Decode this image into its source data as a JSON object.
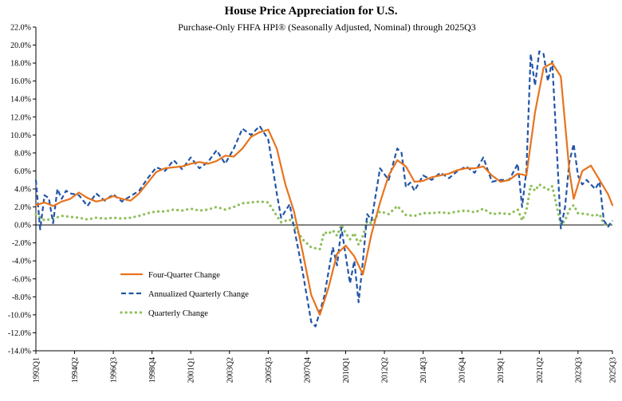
{
  "chart_data": {
    "type": "line",
    "title": "House Price Appreciation for U.S.",
    "subtitle": "Purchase-Only FHFA HPI® (Seasonally Adjusted, Nominal) through 2025Q3",
    "xlabel": "",
    "ylabel": "",
    "ylim": [
      -14,
      22
    ],
    "y_ticks": [
      22,
      20,
      18,
      16,
      14,
      12,
      10,
      8,
      6,
      4,
      2,
      0,
      -2,
      -4,
      -6,
      -8,
      -10,
      -12,
      -14
    ],
    "y_tick_labels": [
      "22.0%",
      "20.0%",
      "18.0%",
      "16.0%",
      "14.0%",
      "12.0%",
      "10.0%",
      "8.0%",
      "6.0%",
      "4.0%",
      "2.0%",
      "0.0%",
      "-2.0%",
      "-4.0%",
      "-6.0%",
      "-8.0%",
      "-10.0%",
      "-12.0%",
      "-14.0%"
    ],
    "x_start_year": 1992,
    "x_end_year": 2025.5,
    "x_tick_labels": [
      "1992Q1",
      "1994Q2",
      "1996Q3",
      "1998Q4",
      "2001Q1",
      "2003Q2",
      "2005Q3",
      "2007Q4",
      "2010Q1",
      "2012Q2",
      "2014Q3",
      "2016Q4",
      "2019Q1",
      "2021Q2",
      "2023Q3",
      "2025Q3"
    ],
    "x_tick_years": [
      1992.0,
      1994.25,
      1996.5,
      1998.75,
      2001.0,
      2003.25,
      2005.5,
      2007.75,
      2010.0,
      2012.25,
      2014.5,
      2016.75,
      2019.0,
      2021.25,
      2023.5,
      2025.5
    ],
    "legend": {
      "placement": "lower-left"
    },
    "series": [
      {
        "name": "Four-Quarter Change",
        "color": "#e8731c",
        "style": "solid",
        "points": [
          [
            1992.0,
            2.2
          ],
          [
            1992.5,
            2.5
          ],
          [
            1993.0,
            2.1
          ],
          [
            1993.5,
            2.6
          ],
          [
            1994.0,
            2.9
          ],
          [
            1994.5,
            3.6
          ],
          [
            1995.0,
            3.0
          ],
          [
            1995.5,
            2.6
          ],
          [
            1996.0,
            2.8
          ],
          [
            1996.5,
            3.2
          ],
          [
            1997.0,
            2.9
          ],
          [
            1997.5,
            2.7
          ],
          [
            1998.0,
            3.5
          ],
          [
            1998.5,
            4.7
          ],
          [
            1999.0,
            5.9
          ],
          [
            1999.5,
            6.3
          ],
          [
            2000.0,
            6.4
          ],
          [
            2000.5,
            6.5
          ],
          [
            2001.0,
            6.8
          ],
          [
            2001.5,
            7.0
          ],
          [
            2002.0,
            6.8
          ],
          [
            2002.5,
            7.1
          ],
          [
            2003.0,
            7.7
          ],
          [
            2003.5,
            7.6
          ],
          [
            2004.0,
            8.5
          ],
          [
            2004.5,
            9.8
          ],
          [
            2005.0,
            10.3
          ],
          [
            2005.5,
            10.6
          ],
          [
            2006.0,
            8.5
          ],
          [
            2006.5,
            4.5
          ],
          [
            2007.0,
            1.5
          ],
          [
            2007.5,
            -3.0
          ],
          [
            2008.0,
            -7.8
          ],
          [
            2008.5,
            -10.0
          ],
          [
            2009.0,
            -7.0
          ],
          [
            2009.5,
            -3.2
          ],
          [
            2010.0,
            -2.3
          ],
          [
            2010.5,
            -3.5
          ],
          [
            2011.0,
            -5.5
          ],
          [
            2011.5,
            -1.0
          ],
          [
            2012.0,
            2.5
          ],
          [
            2012.5,
            5.5
          ],
          [
            2013.0,
            7.2
          ],
          [
            2013.5,
            6.5
          ],
          [
            2014.0,
            4.8
          ],
          [
            2014.5,
            4.9
          ],
          [
            2015.0,
            5.3
          ],
          [
            2015.5,
            5.5
          ],
          [
            2016.0,
            5.7
          ],
          [
            2016.5,
            6.1
          ],
          [
            2017.0,
            6.3
          ],
          [
            2017.5,
            6.3
          ],
          [
            2018.0,
            6.5
          ],
          [
            2018.5,
            5.5
          ],
          [
            2019.0,
            4.8
          ],
          [
            2019.5,
            5.0
          ],
          [
            2020.0,
            5.7
          ],
          [
            2020.5,
            5.5
          ],
          [
            2021.0,
            12.5
          ],
          [
            2021.5,
            17.5
          ],
          [
            2022.0,
            18.0
          ],
          [
            2022.5,
            16.5
          ],
          [
            2023.0,
            6.0
          ],
          [
            2023.25,
            2.9
          ],
          [
            2023.75,
            6.0
          ],
          [
            2024.25,
            6.6
          ],
          [
            2024.75,
            5.0
          ],
          [
            2025.25,
            3.4
          ],
          [
            2025.5,
            2.2
          ]
        ]
      },
      {
        "name": "Annualized Quarterly Change",
        "color": "#2255a8",
        "style": "dashed",
        "points": [
          [
            1992.0,
            5.0
          ],
          [
            1992.25,
            -0.5
          ],
          [
            1992.5,
            3.3
          ],
          [
            1992.75,
            3.0
          ],
          [
            1993.0,
            0.2
          ],
          [
            1993.25,
            4.0
          ],
          [
            1993.5,
            2.9
          ],
          [
            1993.75,
            3.8
          ],
          [
            1994.0,
            3.5
          ],
          [
            1994.5,
            3.3
          ],
          [
            1995.0,
            2.1
          ],
          [
            1995.5,
            3.5
          ],
          [
            1996.0,
            2.7
          ],
          [
            1996.5,
            3.4
          ],
          [
            1997.0,
            2.6
          ],
          [
            1997.5,
            3.2
          ],
          [
            1998.0,
            3.8
          ],
          [
            1998.5,
            5.2
          ],
          [
            1999.0,
            6.4
          ],
          [
            1999.5,
            6.0
          ],
          [
            2000.0,
            7.2
          ],
          [
            2000.5,
            6.2
          ],
          [
            2001.0,
            7.5
          ],
          [
            2001.5,
            6.3
          ],
          [
            2002.0,
            7.0
          ],
          [
            2002.5,
            8.3
          ],
          [
            2003.0,
            6.8
          ],
          [
            2003.5,
            8.5
          ],
          [
            2004.0,
            10.7
          ],
          [
            2004.5,
            10.0
          ],
          [
            2005.0,
            11.0
          ],
          [
            2005.5,
            9.5
          ],
          [
            2006.0,
            3.5
          ],
          [
            2006.25,
            0.8
          ],
          [
            2006.75,
            2.3
          ],
          [
            2007.0,
            -0.3
          ],
          [
            2007.5,
            -5.2
          ],
          [
            2008.0,
            -10.8
          ],
          [
            2008.25,
            -11.3
          ],
          [
            2008.75,
            -8.0
          ],
          [
            2009.25,
            -2.5
          ],
          [
            2009.5,
            -4.5
          ],
          [
            2009.75,
            -0.3
          ],
          [
            2010.25,
            -6.5
          ],
          [
            2010.5,
            -4.0
          ],
          [
            2010.75,
            -8.6
          ],
          [
            2011.0,
            -4.0
          ],
          [
            2011.25,
            1.2
          ],
          [
            2011.5,
            0.5
          ],
          [
            2012.0,
            6.3
          ],
          [
            2012.5,
            5.0
          ],
          [
            2013.0,
            8.5
          ],
          [
            2013.25,
            8.0
          ],
          [
            2013.5,
            4.2
          ],
          [
            2013.75,
            4.7
          ],
          [
            2014.0,
            3.8
          ],
          [
            2014.5,
            5.5
          ],
          [
            2015.0,
            5.0
          ],
          [
            2015.5,
            5.8
          ],
          [
            2016.0,
            5.2
          ],
          [
            2016.5,
            6.0
          ],
          [
            2017.0,
            6.5
          ],
          [
            2017.5,
            5.8
          ],
          [
            2018.0,
            7.5
          ],
          [
            2018.5,
            4.8
          ],
          [
            2019.0,
            5.0
          ],
          [
            2019.5,
            5.0
          ],
          [
            2020.0,
            6.8
          ],
          [
            2020.25,
            2.0
          ],
          [
            2020.5,
            6.0
          ],
          [
            2020.75,
            19.0
          ],
          [
            2021.0,
            15.5
          ],
          [
            2021.25,
            19.3
          ],
          [
            2021.5,
            19.0
          ],
          [
            2021.75,
            16.0
          ],
          [
            2022.0,
            18.2
          ],
          [
            2022.25,
            9.0
          ],
          [
            2022.5,
            -0.4
          ],
          [
            2022.75,
            2.0
          ],
          [
            2023.0,
            7.0
          ],
          [
            2023.25,
            9.0
          ],
          [
            2023.5,
            5.5
          ],
          [
            2023.75,
            4.5
          ],
          [
            2024.0,
            5.0
          ],
          [
            2024.5,
            4.0
          ],
          [
            2024.75,
            4.8
          ],
          [
            2025.0,
            0.5
          ],
          [
            2025.25,
            -0.2
          ],
          [
            2025.5,
            0.5
          ]
        ]
      },
      {
        "name": "Quarterly Change",
        "color": "#8fbf5a",
        "style": "dotted",
        "points": [
          [
            1992.0,
            1.2
          ],
          [
            1992.5,
            0.5
          ],
          [
            1993.0,
            0.7
          ],
          [
            1993.5,
            1.0
          ],
          [
            1994.0,
            0.9
          ],
          [
            1994.5,
            0.8
          ],
          [
            1995.0,
            0.6
          ],
          [
            1995.5,
            0.8
          ],
          [
            1996.0,
            0.7
          ],
          [
            1996.5,
            0.8
          ],
          [
            1997.0,
            0.7
          ],
          [
            1997.5,
            0.8
          ],
          [
            1998.0,
            1.0
          ],
          [
            1998.5,
            1.3
          ],
          [
            1999.0,
            1.5
          ],
          [
            1999.5,
            1.5
          ],
          [
            2000.0,
            1.7
          ],
          [
            2000.5,
            1.6
          ],
          [
            2001.0,
            1.8
          ],
          [
            2001.5,
            1.6
          ],
          [
            2002.0,
            1.7
          ],
          [
            2002.5,
            2.0
          ],
          [
            2003.0,
            1.7
          ],
          [
            2003.5,
            2.0
          ],
          [
            2004.0,
            2.4
          ],
          [
            2004.5,
            2.5
          ],
          [
            2005.0,
            2.6
          ],
          [
            2005.5,
            2.5
          ],
          [
            2006.0,
            1.0
          ],
          [
            2006.25,
            0.3
          ],
          [
            2006.75,
            0.6
          ],
          [
            2007.0,
            -0.1
          ],
          [
            2007.5,
            -1.6
          ],
          [
            2008.0,
            -2.5
          ],
          [
            2008.5,
            -2.7
          ],
          [
            2008.75,
            -0.8
          ],
          [
            2009.0,
            -1.0
          ],
          [
            2009.25,
            -0.6
          ],
          [
            2009.5,
            -1.2
          ],
          [
            2009.75,
            0.0
          ],
          [
            2010.0,
            -0.9
          ],
          [
            2010.25,
            -1.6
          ],
          [
            2010.5,
            -0.9
          ],
          [
            2010.75,
            -2.2
          ],
          [
            2011.0,
            -1.2
          ],
          [
            2011.25,
            0.4
          ],
          [
            2011.5,
            0.2
          ],
          [
            2012.0,
            1.5
          ],
          [
            2012.5,
            1.2
          ],
          [
            2013.0,
            2.1
          ],
          [
            2013.5,
            1.1
          ],
          [
            2014.0,
            1.0
          ],
          [
            2014.5,
            1.3
          ],
          [
            2015.0,
            1.3
          ],
          [
            2015.5,
            1.4
          ],
          [
            2016.0,
            1.3
          ],
          [
            2016.5,
            1.5
          ],
          [
            2017.0,
            1.6
          ],
          [
            2017.5,
            1.4
          ],
          [
            2018.0,
            1.8
          ],
          [
            2018.5,
            1.2
          ],
          [
            2019.0,
            1.3
          ],
          [
            2019.5,
            1.2
          ],
          [
            2020.0,
            1.7
          ],
          [
            2020.25,
            0.5
          ],
          [
            2020.5,
            1.6
          ],
          [
            2020.75,
            4.4
          ],
          [
            2021.0,
            3.8
          ],
          [
            2021.25,
            4.5
          ],
          [
            2021.75,
            3.9
          ],
          [
            2022.0,
            4.3
          ],
          [
            2022.25,
            2.2
          ],
          [
            2022.5,
            0.0
          ],
          [
            2022.75,
            0.5
          ],
          [
            2023.0,
            1.7
          ],
          [
            2023.25,
            2.2
          ],
          [
            2023.5,
            1.3
          ],
          [
            2024.0,
            1.2
          ],
          [
            2024.5,
            1.0
          ],
          [
            2024.75,
            1.2
          ],
          [
            2025.0,
            0.1
          ],
          [
            2025.25,
            0.0
          ],
          [
            2025.5,
            0.1
          ]
        ]
      }
    ]
  }
}
